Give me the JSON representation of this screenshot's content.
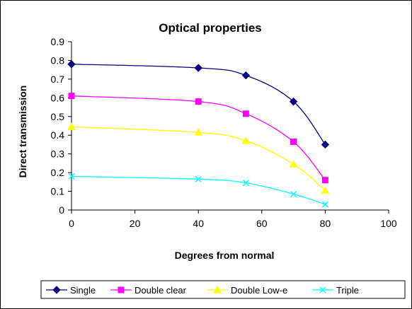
{
  "chart_data": {
    "type": "line",
    "title": "Optical properties",
    "xlabel": "Degrees from normal",
    "ylabel": "Direct transmission",
    "xlim": [
      0,
      100
    ],
    "ylim": [
      0,
      0.9
    ],
    "xticks": [
      "0",
      "20",
      "40",
      "60",
      "80",
      "100"
    ],
    "yticks": [
      "0",
      "0.1",
      "0.2",
      "0.3",
      "0.4",
      "0.5",
      "0.6",
      "0.7",
      "0.8",
      "0.9"
    ],
    "x": [
      0,
      40,
      55,
      70,
      80
    ],
    "grid": false,
    "legend_position": "bottom",
    "series": [
      {
        "name": "Single",
        "values": [
          0.78,
          0.76,
          0.72,
          0.58,
          0.35
        ],
        "color": "#000080",
        "marker": "diamond"
      },
      {
        "name": "Double clear",
        "values": [
          0.61,
          0.58,
          0.515,
          0.365,
          0.16
        ],
        "color": "#FF00FF",
        "marker": "square"
      },
      {
        "name": "Double Low-e",
        "values": [
          0.445,
          0.415,
          0.37,
          0.245,
          0.105
        ],
        "color": "#FFFF00",
        "marker": "triangle"
      },
      {
        "name": "Triple",
        "values": [
          0.18,
          0.165,
          0.145,
          0.085,
          0.03
        ],
        "color": "#00FFFF",
        "marker": "x"
      }
    ]
  }
}
